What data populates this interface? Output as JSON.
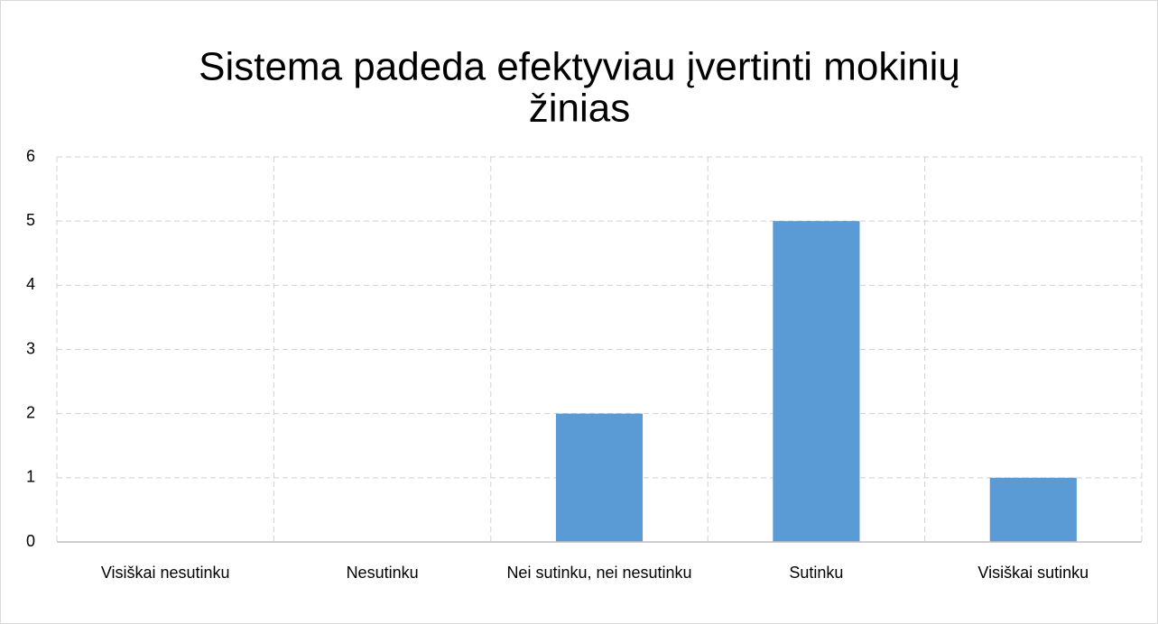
{
  "chart_data": {
    "type": "bar",
    "title": [
      "Sistema padeda efektyviau įvertinti mokinių",
      "žinias"
    ],
    "categories": [
      "Visiškai nesutinku",
      "Nesutinku",
      "Nei sutinku, nei nesutinku",
      "Sutinku",
      "Visiškai sutinku"
    ],
    "values": [
      0,
      0,
      2,
      5,
      1
    ],
    "color": "#5b9bd5",
    "ylim": [
      0,
      6
    ],
    "yticks": [
      0,
      1,
      2,
      3,
      4,
      5,
      6
    ],
    "grid": true
  }
}
